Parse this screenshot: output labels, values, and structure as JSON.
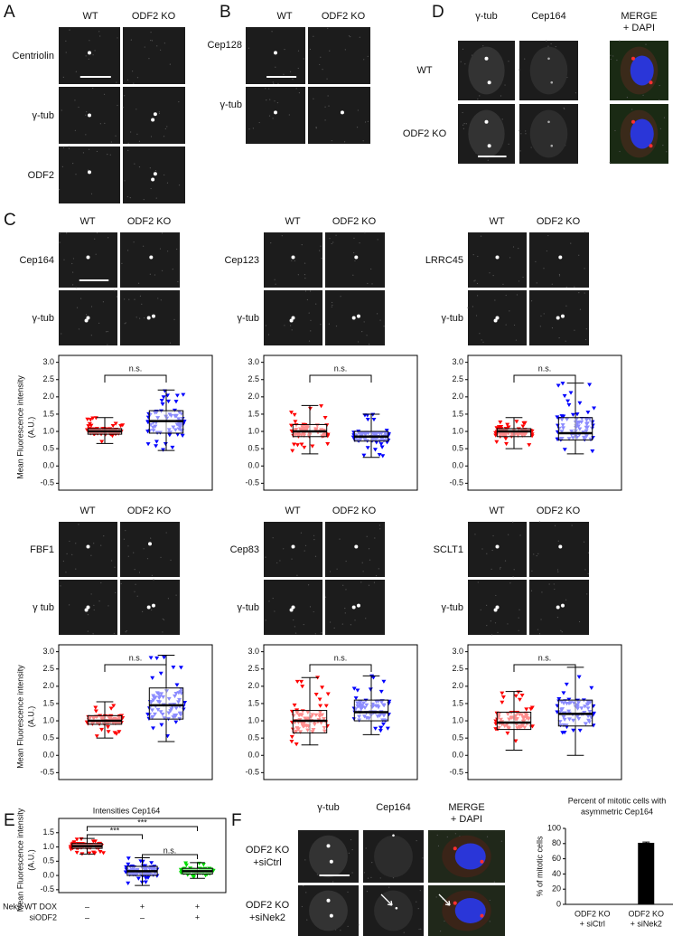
{
  "panel_a": {
    "label": "A",
    "columns": [
      "WT",
      "ODF2 KO"
    ],
    "rows": [
      "Centriolin",
      "γ-tub",
      "ODF2"
    ]
  },
  "panel_b": {
    "label": "B",
    "columns": [
      "WT",
      "ODF2 KO"
    ],
    "rows": [
      "Cep128",
      "γ-tub"
    ]
  },
  "panel_d": {
    "label": "D",
    "columns": [
      "γ-tub",
      "Cep164",
      [
        "MERGE",
        "+ DAPI"
      ]
    ],
    "column_colors": [
      "#e8202a",
      "#2aa040",
      "#222222"
    ],
    "rows": [
      "WT",
      "ODF2 KO"
    ]
  },
  "panel_c": {
    "label": "C",
    "columns": [
      "WT",
      "ODF2 KO"
    ],
    "group_colors": [
      "#ff0000",
      "#0000ff"
    ],
    "significance": "n.s.",
    "axis": {
      "ylim": [
        -0.7,
        3.2
      ],
      "yticks": [
        {
          "value": 3,
          "label": "3.0"
        },
        2.5,
        {
          "value": 2,
          "label": "2.0"
        },
        1.5,
        {
          "value": 1,
          "label": "1.0"
        },
        0.5,
        {
          "value": 0,
          "label": "0.0"
        },
        -0.5
      ],
      "ylabel": [
        "Mean Fluorescence  intensity",
        "(A.U.)"
      ]
    },
    "markers": [
      {
        "name": "Cep164",
        "stain": "γ-tub",
        "boxes": [
          {
            "low": 0.65,
            "q1": 0.92,
            "median": 1.0,
            "q3": 1.08,
            "high": 1.4
          },
          {
            "low": 0.45,
            "q1": 0.95,
            "median": 1.3,
            "q3": 1.6,
            "high": 2.2
          }
        ]
      },
      {
        "name": "Cep123",
        "stain": "γ-tub",
        "boxes": [
          {
            "low": 0.35,
            "q1": 0.85,
            "median": 1.0,
            "q3": 1.2,
            "high": 1.75
          },
          {
            "low": 0.25,
            "q1": 0.72,
            "median": 0.85,
            "q3": 1.0,
            "high": 1.5
          }
        ]
      },
      {
        "name": "LRRC45",
        "stain": "γ-tub",
        "boxes": [
          {
            "low": 0.5,
            "q1": 0.85,
            "median": 1.0,
            "q3": 1.08,
            "high": 1.4
          },
          {
            "low": 0.35,
            "q1": 0.75,
            "median": 0.95,
            "q3": 1.4,
            "high": 2.4
          }
        ]
      },
      {
        "name": "FBF1",
        "stain": "γ tub",
        "boxes": [
          {
            "low": 0.5,
            "q1": 0.9,
            "median": 1.0,
            "q3": 1.15,
            "high": 1.55
          },
          {
            "low": 0.4,
            "q1": 1.05,
            "median": 1.45,
            "q3": 1.95,
            "high": 2.9
          }
        ]
      },
      {
        "name": "Cep83",
        "stain": "γ-tub",
        "boxes": [
          {
            "low": 0.3,
            "q1": 0.65,
            "median": 1.0,
            "q3": 1.3,
            "high": 2.25
          },
          {
            "low": 0.6,
            "q1": 1.0,
            "median": 1.25,
            "q3": 1.6,
            "high": 2.3
          }
        ]
      },
      {
        "name": "SCLT1",
        "stain": "γ-tub",
        "boxes": [
          {
            "low": 0.15,
            "q1": 0.75,
            "median": 0.95,
            "q3": 1.25,
            "high": 1.85
          },
          {
            "low": 0.0,
            "q1": 0.85,
            "median": 1.2,
            "q3": 1.6,
            "high": 2.55
          }
        ]
      }
    ]
  },
  "panel_e": {
    "label": "E",
    "title": "Intensities Cep164",
    "ylim": [
      -0.6,
      2.0
    ],
    "yticks": [
      1.5,
      {
        "value": 1,
        "label": "1.0"
      },
      0.5,
      {
        "value": 0,
        "label": "0.0"
      },
      -0.5
    ],
    "ylabel": [
      "Mean Fluorescence  intensity",
      "(A.U.)"
    ],
    "colors": [
      "#ff0000",
      "#0000ff",
      "#00dd00"
    ],
    "boxes": [
      {
        "low": 0.75,
        "q1": 0.95,
        "median": 1.03,
        "q3": 1.12,
        "high": 1.3
      },
      {
        "low": -0.35,
        "q1": 0.0,
        "median": 0.15,
        "q3": 0.32,
        "high": 0.62
      },
      {
        "low": -0.1,
        "q1": 0.05,
        "median": 0.15,
        "q3": 0.25,
        "high": 0.45
      }
    ],
    "comparisons": [
      "***",
      "***",
      "n.s."
    ],
    "conditions": [
      {
        "name": "Nek2-WT DOX",
        "marks": [
          "–",
          "+",
          "+"
        ]
      },
      {
        "name": "siODF2",
        "marks": [
          "–",
          "–",
          "+"
        ]
      }
    ]
  },
  "panel_f": {
    "label": "F",
    "columns": [
      "γ-tub",
      "Cep164",
      [
        "MERGE",
        "+ DAPI"
      ]
    ],
    "column_colors": [
      "#e8202a",
      "#2aa040",
      "#222222"
    ],
    "rows": [
      [
        "ODF2 KO",
        "+siCtrl"
      ],
      [
        "ODF2 KO",
        "+siNek2"
      ]
    ],
    "chart": {
      "type": "bar",
      "title": [
        "Percent of mitotic cells with",
        "asymmetric Cep164"
      ],
      "ylabel": "% of mitotic cells",
      "categories": [
        [
          "ODF2 KO",
          "+ siCtrl"
        ],
        [
          "ODF2 KO",
          "+ siNek2"
        ]
      ],
      "values": [
        0,
        81
      ],
      "errors": [
        0,
        1
      ],
      "ylim": [
        0,
        100
      ],
      "yticks": [
        0,
        20,
        40,
        60,
        80,
        100
      ],
      "color": "#000000"
    }
  }
}
